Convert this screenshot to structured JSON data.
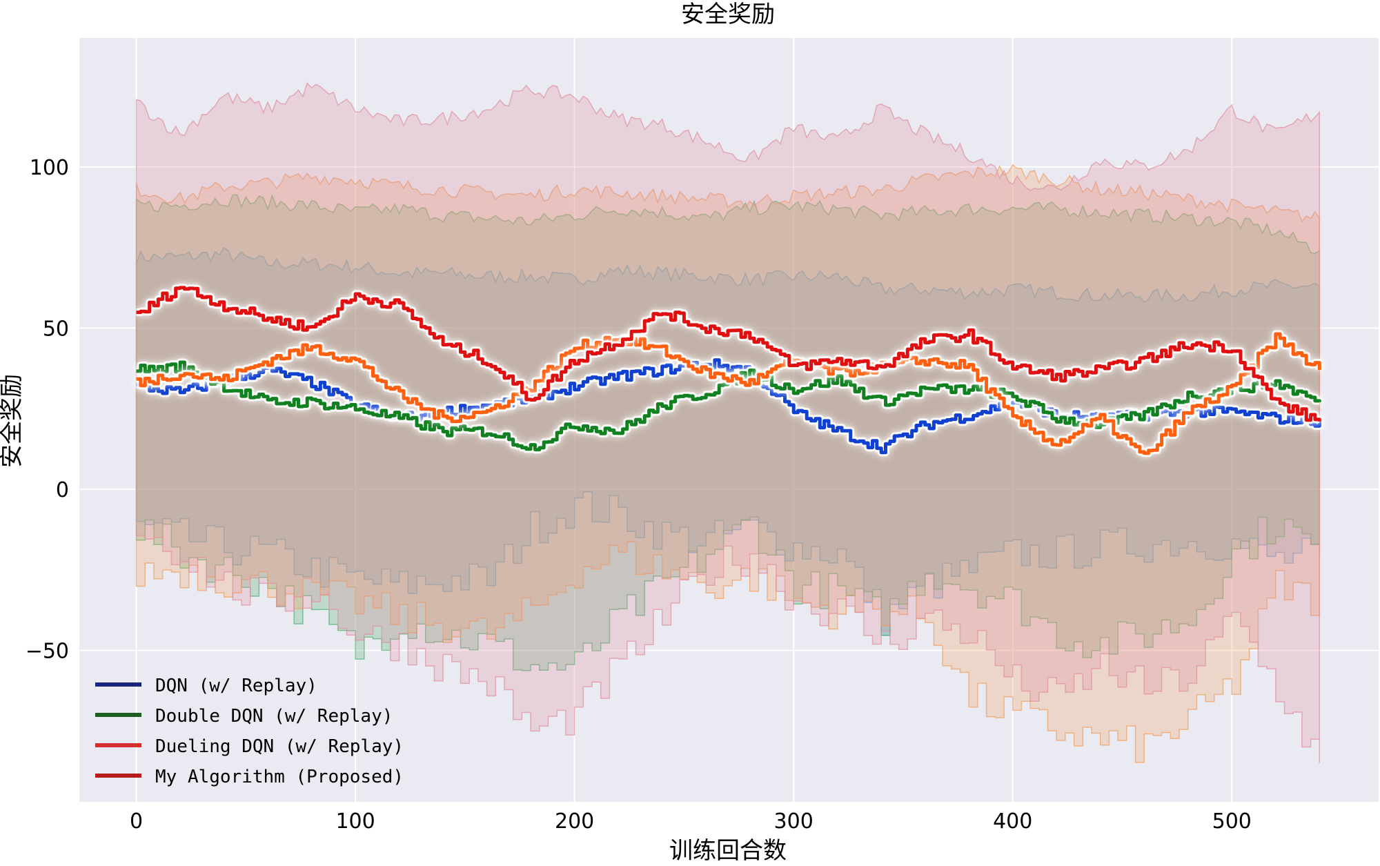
{
  "chart_data": {
    "type": "area",
    "title": "安全奖励",
    "xlabel": "训练回合数",
    "ylabel": "安全奖励",
    "xlim": [
      -26,
      567
    ],
    "ylim": [
      -97,
      140
    ],
    "xticks": [
      0,
      100,
      200,
      300,
      400,
      500
    ],
    "yticks": [
      -50,
      0,
      50,
      100
    ],
    "grid": true,
    "legend_position": "lower-left",
    "x": [
      0,
      20,
      40,
      60,
      80,
      100,
      120,
      140,
      160,
      180,
      200,
      220,
      240,
      260,
      280,
      300,
      320,
      340,
      360,
      380,
      400,
      420,
      440,
      460,
      480,
      500,
      520,
      540
    ],
    "series": [
      {
        "name": "DQN (w/ Replay)",
        "legend_color": "#1a237e",
        "line_color": "#1040d0",
        "band_color": "#5aa0e0",
        "mean": [
          32,
          30,
          34,
          37,
          33,
          26,
          22,
          24,
          26,
          28,
          32,
          35,
          37,
          39,
          37,
          24,
          18,
          13,
          20,
          23,
          27,
          23,
          22,
          23,
          24,
          24,
          22,
          21
        ],
        "upper": [
          72,
          72,
          73,
          70,
          70,
          69,
          67,
          67,
          66,
          66,
          65,
          68,
          67,
          66,
          65,
          66,
          66,
          62,
          62,
          61,
          62,
          61,
          60,
          60,
          60,
          62,
          63,
          63
        ],
        "lower": [
          -12,
          -15,
          -18,
          -20,
          -25,
          -28,
          -30,
          -28,
          -28,
          -12,
          -5,
          -8,
          -14,
          -16,
          -12,
          -18,
          -20,
          -40,
          -30,
          -25,
          -20,
          -20,
          -18,
          -17,
          -16,
          -17,
          -22,
          -20
        ]
      },
      {
        "name": "Double DQN (w/ Replay)",
        "legend_color": "#1b5e20",
        "line_color": "#108020",
        "band_color": "#50b070",
        "mean": [
          37,
          38,
          32,
          27,
          27,
          25,
          22,
          18,
          18,
          13,
          20,
          18,
          26,
          30,
          36,
          31,
          34,
          27,
          31,
          31,
          29,
          22,
          20,
          23,
          29,
          31,
          33,
          27
        ],
        "upper": [
          88,
          88,
          90,
          89,
          88,
          86,
          87,
          85,
          84,
          83,
          85,
          87,
          86,
          84,
          87,
          88,
          87,
          85,
          86,
          87,
          87,
          87,
          86,
          85,
          84,
          83,
          80,
          74
        ],
        "lower": [
          -12,
          -20,
          -25,
          -30,
          -40,
          -50,
          -40,
          -45,
          -48,
          -55,
          -55,
          -40,
          -30,
          -20,
          -10,
          -30,
          -32,
          -40,
          -25,
          -30,
          -35,
          -45,
          -48,
          -45,
          -40,
          -20,
          -10,
          -20
        ]
      },
      {
        "name": "Dueling DQN (w/ Replay)",
        "legend_color": "#d32f2f",
        "line_color": "#ff6010",
        "band_color": "#f0a060",
        "mean": [
          33,
          36,
          34,
          40,
          44,
          40,
          29,
          22,
          24,
          32,
          44,
          47,
          43,
          36,
          33,
          40,
          36,
          38,
          40,
          38,
          22,
          14,
          22,
          10,
          24,
          31,
          47,
          37
        ],
        "upper": [
          93,
          90,
          94,
          95,
          97,
          96,
          94,
          93,
          92,
          91,
          93,
          92,
          91,
          90,
          89,
          91,
          92,
          93,
          96,
          98,
          99,
          96,
          93,
          92,
          90,
          88,
          86,
          84
        ],
        "lower": [
          -26,
          -25,
          -28,
          -30,
          -33,
          -35,
          -40,
          -42,
          -45,
          -38,
          -25,
          -20,
          -25,
          -30,
          -27,
          -35,
          -38,
          -37,
          -40,
          -65,
          -70,
          -75,
          -78,
          -80,
          -72,
          -60,
          -30,
          -35
        ]
      },
      {
        "name": "My Algorithm (Proposed)",
        "legend_color": "#b71c1c",
        "line_color": "#e01010",
        "band_color": "#e090a0",
        "mean": [
          54,
          63,
          57,
          53,
          50,
          60,
          57,
          45,
          40,
          28,
          40,
          46,
          55,
          50,
          48,
          38,
          40,
          38,
          46,
          48,
          38,
          35,
          37,
          40,
          45,
          44,
          27,
          21
        ],
        "upper": [
          120,
          110,
          122,
          118,
          125,
          118,
          114,
          115,
          118,
          124,
          122,
          115,
          113,
          108,
          102,
          112,
          108,
          118,
          110,
          104,
          96,
          93,
          102,
          100,
          105,
          118,
          110,
          117
        ],
        "lower": [
          -12,
          -20,
          -30,
          -35,
          -32,
          -45,
          -48,
          -55,
          -60,
          -75,
          -70,
          -55,
          -40,
          -25,
          -20,
          -35,
          -38,
          -48,
          -40,
          -45,
          -60,
          -65,
          -55,
          -62,
          -58,
          -40,
          -62,
          -85
        ]
      }
    ]
  }
}
